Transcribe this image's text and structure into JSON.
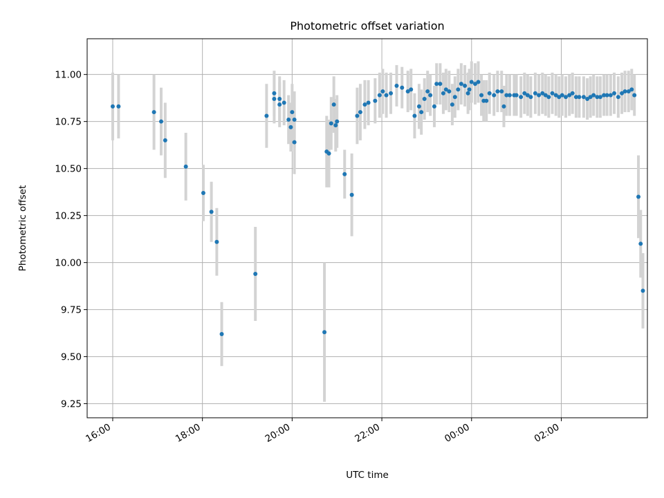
{
  "chart_data": {
    "type": "scatter",
    "title": "Photometric offset variation",
    "xlabel": "UTC time",
    "ylabel": "Photometric offset",
    "x_ticks": [
      "16:00",
      "18:00",
      "20:00",
      "22:00",
      "00:00",
      "02:00"
    ],
    "x_tick_hours": [
      16,
      18,
      20,
      22,
      24,
      26
    ],
    "y_ticks": [
      "9.25",
      "9.50",
      "9.75",
      "10.00",
      "10.25",
      "10.50",
      "10.75",
      "11.00"
    ],
    "xlim": [
      15.43,
      27.92
    ],
    "ylim": [
      9.175,
      11.19
    ],
    "grid": true,
    "colors": {
      "point": "#1f77b4",
      "errorbar": "#d3d3d3",
      "grid": "#b0b0b0"
    },
    "x_unit": "hours since 00:00 UTC of first day",
    "points": [
      [
        16.0,
        10.83,
        0.18
      ],
      [
        16.13,
        10.83,
        0.17
      ],
      [
        16.92,
        10.8,
        0.2
      ],
      [
        17.08,
        10.75,
        0.18
      ],
      [
        17.17,
        10.65,
        0.2
      ],
      [
        17.63,
        10.51,
        0.18
      ],
      [
        18.02,
        10.37,
        0.15
      ],
      [
        18.2,
        10.27,
        0.16
      ],
      [
        18.32,
        10.11,
        0.18
      ],
      [
        18.43,
        9.62,
        0.17
      ],
      [
        19.18,
        9.94,
        0.25
      ],
      [
        19.43,
        10.78,
        0.17
      ],
      [
        19.6,
        10.9,
        0.12
      ],
      [
        19.6,
        10.87,
        0.13
      ],
      [
        19.72,
        10.87,
        0.12
      ],
      [
        19.72,
        10.84,
        0.12
      ],
      [
        19.82,
        10.85,
        0.12
      ],
      [
        19.92,
        10.76,
        0.13
      ],
      [
        19.97,
        10.72,
        0.13
      ],
      [
        20.0,
        10.8,
        0.15
      ],
      [
        20.05,
        10.76,
        0.15
      ],
      [
        20.05,
        10.64,
        0.17
      ],
      [
        20.72,
        9.63,
        0.37
      ],
      [
        20.77,
        10.59,
        0.19
      ],
      [
        20.82,
        10.58,
        0.18
      ],
      [
        20.87,
        10.74,
        0.14
      ],
      [
        20.93,
        10.84,
        0.15
      ],
      [
        20.97,
        10.73,
        0.14
      ],
      [
        21.0,
        10.75,
        0.14
      ],
      [
        21.17,
        10.47,
        0.13
      ],
      [
        21.33,
        10.36,
        0.22
      ],
      [
        21.45,
        10.78,
        0.15
      ],
      [
        21.52,
        10.8,
        0.15
      ],
      [
        21.62,
        10.84,
        0.13
      ],
      [
        21.7,
        10.85,
        0.12
      ],
      [
        21.85,
        10.86,
        0.12
      ],
      [
        21.95,
        10.89,
        0.12
      ],
      [
        22.02,
        10.91,
        0.12
      ],
      [
        22.1,
        10.89,
        0.12
      ],
      [
        22.2,
        10.9,
        0.11
      ],
      [
        22.33,
        10.94,
        0.11
      ],
      [
        22.45,
        10.93,
        0.11
      ],
      [
        22.58,
        10.91,
        0.11
      ],
      [
        22.65,
        10.92,
        0.11
      ],
      [
        22.73,
        10.78,
        0.12
      ],
      [
        22.83,
        10.83,
        0.12
      ],
      [
        22.88,
        10.8,
        0.12
      ],
      [
        22.95,
        10.87,
        0.11
      ],
      [
        23.02,
        10.91,
        0.11
      ],
      [
        23.08,
        10.89,
        0.11
      ],
      [
        23.17,
        10.83,
        0.11
      ],
      [
        23.22,
        10.95,
        0.11
      ],
      [
        23.3,
        10.95,
        0.11
      ],
      [
        23.37,
        10.9,
        0.11
      ],
      [
        23.43,
        10.92,
        0.11
      ],
      [
        23.5,
        10.91,
        0.11
      ],
      [
        23.57,
        10.84,
        0.11
      ],
      [
        23.63,
        10.88,
        0.11
      ],
      [
        23.7,
        10.92,
        0.11
      ],
      [
        23.77,
        10.95,
        0.11
      ],
      [
        23.85,
        10.94,
        0.11
      ],
      [
        23.92,
        10.9,
        0.11
      ],
      [
        23.95,
        10.92,
        0.11
      ],
      [
        24.0,
        10.96,
        0.11
      ],
      [
        24.08,
        10.95,
        0.11
      ],
      [
        24.15,
        10.96,
        0.11
      ],
      [
        24.22,
        10.89,
        0.11
      ],
      [
        24.27,
        10.86,
        0.11
      ],
      [
        24.33,
        10.86,
        0.11
      ],
      [
        24.4,
        10.9,
        0.11
      ],
      [
        24.5,
        10.89,
        0.11
      ],
      [
        24.58,
        10.91,
        0.11
      ],
      [
        24.67,
        10.91,
        0.11
      ],
      [
        24.72,
        10.83,
        0.11
      ],
      [
        24.78,
        10.89,
        0.11
      ],
      [
        24.85,
        10.89,
        0.11
      ],
      [
        24.95,
        10.89,
        0.11
      ],
      [
        25.0,
        10.89,
        0.11
      ],
      [
        25.1,
        10.88,
        0.11
      ],
      [
        25.18,
        10.9,
        0.11
      ],
      [
        25.25,
        10.89,
        0.11
      ],
      [
        25.32,
        10.88,
        0.11
      ],
      [
        25.42,
        10.9,
        0.11
      ],
      [
        25.5,
        10.89,
        0.11
      ],
      [
        25.58,
        10.9,
        0.11
      ],
      [
        25.65,
        10.89,
        0.11
      ],
      [
        25.72,
        10.88,
        0.11
      ],
      [
        25.8,
        10.9,
        0.11
      ],
      [
        25.88,
        10.89,
        0.11
      ],
      [
        25.95,
        10.88,
        0.11
      ],
      [
        26.02,
        10.89,
        0.11
      ],
      [
        26.1,
        10.88,
        0.11
      ],
      [
        26.18,
        10.89,
        0.11
      ],
      [
        26.25,
        10.9,
        0.11
      ],
      [
        26.33,
        10.88,
        0.11
      ],
      [
        26.4,
        10.88,
        0.11
      ],
      [
        26.5,
        10.88,
        0.11
      ],
      [
        26.58,
        10.87,
        0.11
      ],
      [
        26.65,
        10.88,
        0.11
      ],
      [
        26.72,
        10.89,
        0.11
      ],
      [
        26.8,
        10.88,
        0.11
      ],
      [
        26.87,
        10.88,
        0.11
      ],
      [
        26.95,
        10.89,
        0.11
      ],
      [
        27.02,
        10.89,
        0.11
      ],
      [
        27.1,
        10.89,
        0.11
      ],
      [
        27.18,
        10.9,
        0.11
      ],
      [
        27.27,
        10.88,
        0.11
      ],
      [
        27.35,
        10.9,
        0.11
      ],
      [
        27.42,
        10.91,
        0.11
      ],
      [
        27.5,
        10.91,
        0.11
      ],
      [
        27.57,
        10.92,
        0.11
      ],
      [
        27.63,
        10.89,
        0.11
      ],
      [
        27.72,
        10.35,
        0.22
      ],
      [
        27.77,
        10.1,
        0.18
      ],
      [
        27.82,
        9.85,
        0.2
      ]
    ]
  }
}
